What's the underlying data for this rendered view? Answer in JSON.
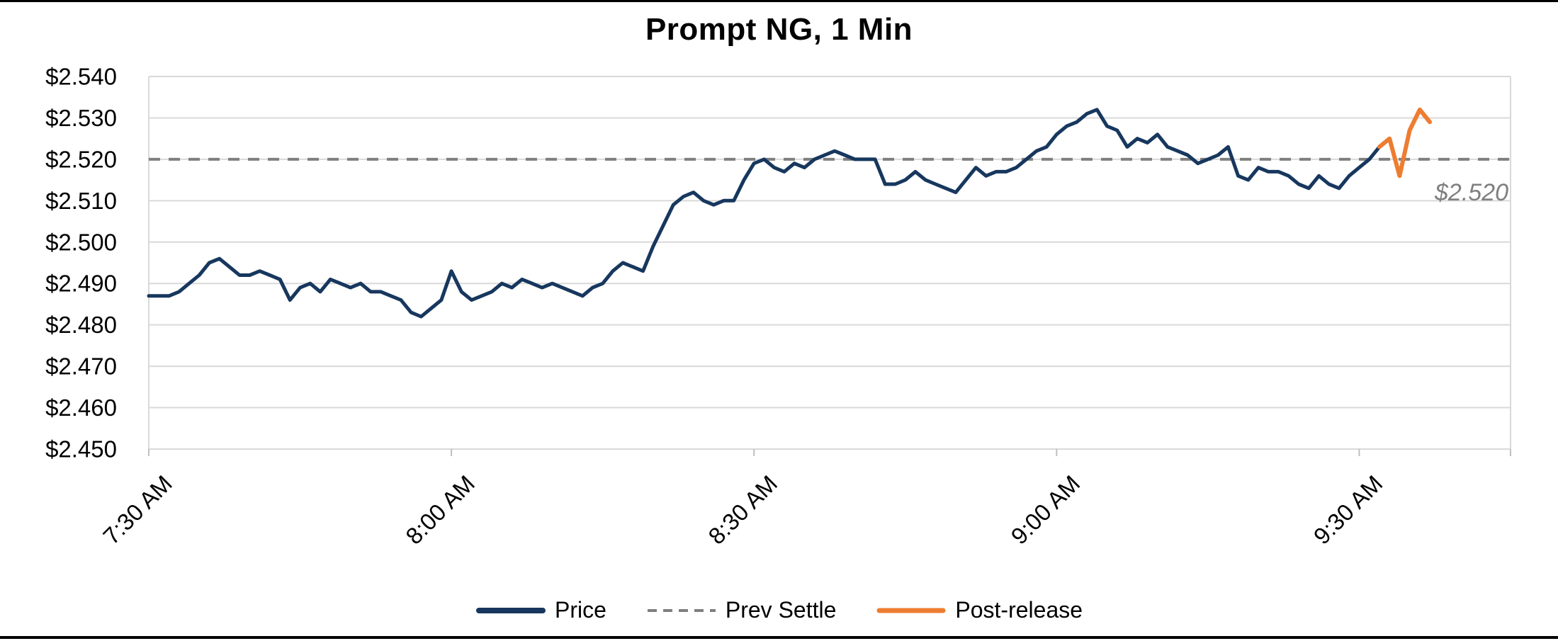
{
  "chart_data": {
    "type": "line",
    "title": "Prompt NG, 1 Min",
    "x_axis": {
      "tick_labels": [
        "7:30 AM",
        "8:00 AM",
        "8:30 AM",
        "9:00 AM",
        "9:30 AM"
      ],
      "tick_minutes": [
        0,
        30,
        60,
        90,
        120
      ],
      "range_minutes": [
        0,
        135
      ],
      "start_time": "7:30 AM",
      "interval": "1 min"
    },
    "y_axis": {
      "tick_labels": [
        "$2.450",
        "$2.460",
        "$2.470",
        "$2.480",
        "$2.490",
        "$2.500",
        "$2.510",
        "$2.520",
        "$2.530",
        "$2.540"
      ],
      "tick_values": [
        2.45,
        2.46,
        2.47,
        2.48,
        2.49,
        2.5,
        2.51,
        2.52,
        2.53,
        2.54
      ],
      "range": [
        2.45,
        2.54
      ]
    },
    "grid": "horizontal",
    "legend_position": "bottom",
    "annotation": {
      "text": "$2.520",
      "color": "#7F7F7F"
    },
    "prev_settle": 2.52,
    "legend": [
      {
        "label": "Price",
        "color": "#17375E",
        "style": "solid"
      },
      {
        "label": "Prev Settle",
        "color": "#7F7F7F",
        "style": "dashed"
      },
      {
        "label": "Post-release",
        "color": "#ED7D31",
        "style": "solid"
      }
    ],
    "series": [
      {
        "name": "Price",
        "color": "#17375E",
        "type": "line",
        "start_minute": 0,
        "step_minutes": 1,
        "values": [
          2.487,
          2.487,
          2.487,
          2.488,
          2.49,
          2.492,
          2.495,
          2.496,
          2.494,
          2.492,
          2.492,
          2.493,
          2.492,
          2.491,
          2.486,
          2.489,
          2.49,
          2.488,
          2.491,
          2.49,
          2.489,
          2.49,
          2.488,
          2.488,
          2.487,
          2.486,
          2.483,
          2.482,
          2.484,
          2.486,
          2.493,
          2.488,
          2.486,
          2.487,
          2.488,
          2.49,
          2.489,
          2.491,
          2.49,
          2.489,
          2.49,
          2.489,
          2.488,
          2.487,
          2.489,
          2.49,
          2.493,
          2.495,
          2.494,
          2.493,
          2.499,
          2.504,
          2.509,
          2.511,
          2.512,
          2.51,
          2.509,
          2.51,
          2.51,
          2.515,
          2.519,
          2.52,
          2.518,
          2.517,
          2.519,
          2.518,
          2.52,
          2.521,
          2.522,
          2.521,
          2.52,
          2.52,
          2.52,
          2.514,
          2.514,
          2.515,
          2.517,
          2.515,
          2.514,
          2.513,
          2.512,
          2.515,
          2.518,
          2.516,
          2.517,
          2.517,
          2.518,
          2.52,
          2.522,
          2.523,
          2.526,
          2.528,
          2.529,
          2.531,
          2.532,
          2.528,
          2.527,
          2.523,
          2.525,
          2.524,
          2.526,
          2.523,
          2.522,
          2.521,
          2.519,
          2.52,
          2.521,
          2.523,
          2.516,
          2.515,
          2.518,
          2.517,
          2.517,
          2.516,
          2.514,
          2.513,
          2.516,
          2.514,
          2.513,
          2.516,
          2.518,
          2.52,
          2.523
        ]
      },
      {
        "name": "Prev Settle",
        "color": "#7F7F7F",
        "type": "hline",
        "value": 2.52
      },
      {
        "name": "Post-release",
        "color": "#ED7D31",
        "type": "line",
        "start_minute": 122,
        "step_minutes": 1,
        "values": [
          2.523,
          2.525,
          2.516,
          2.527,
          2.532,
          2.529
        ]
      }
    ]
  }
}
